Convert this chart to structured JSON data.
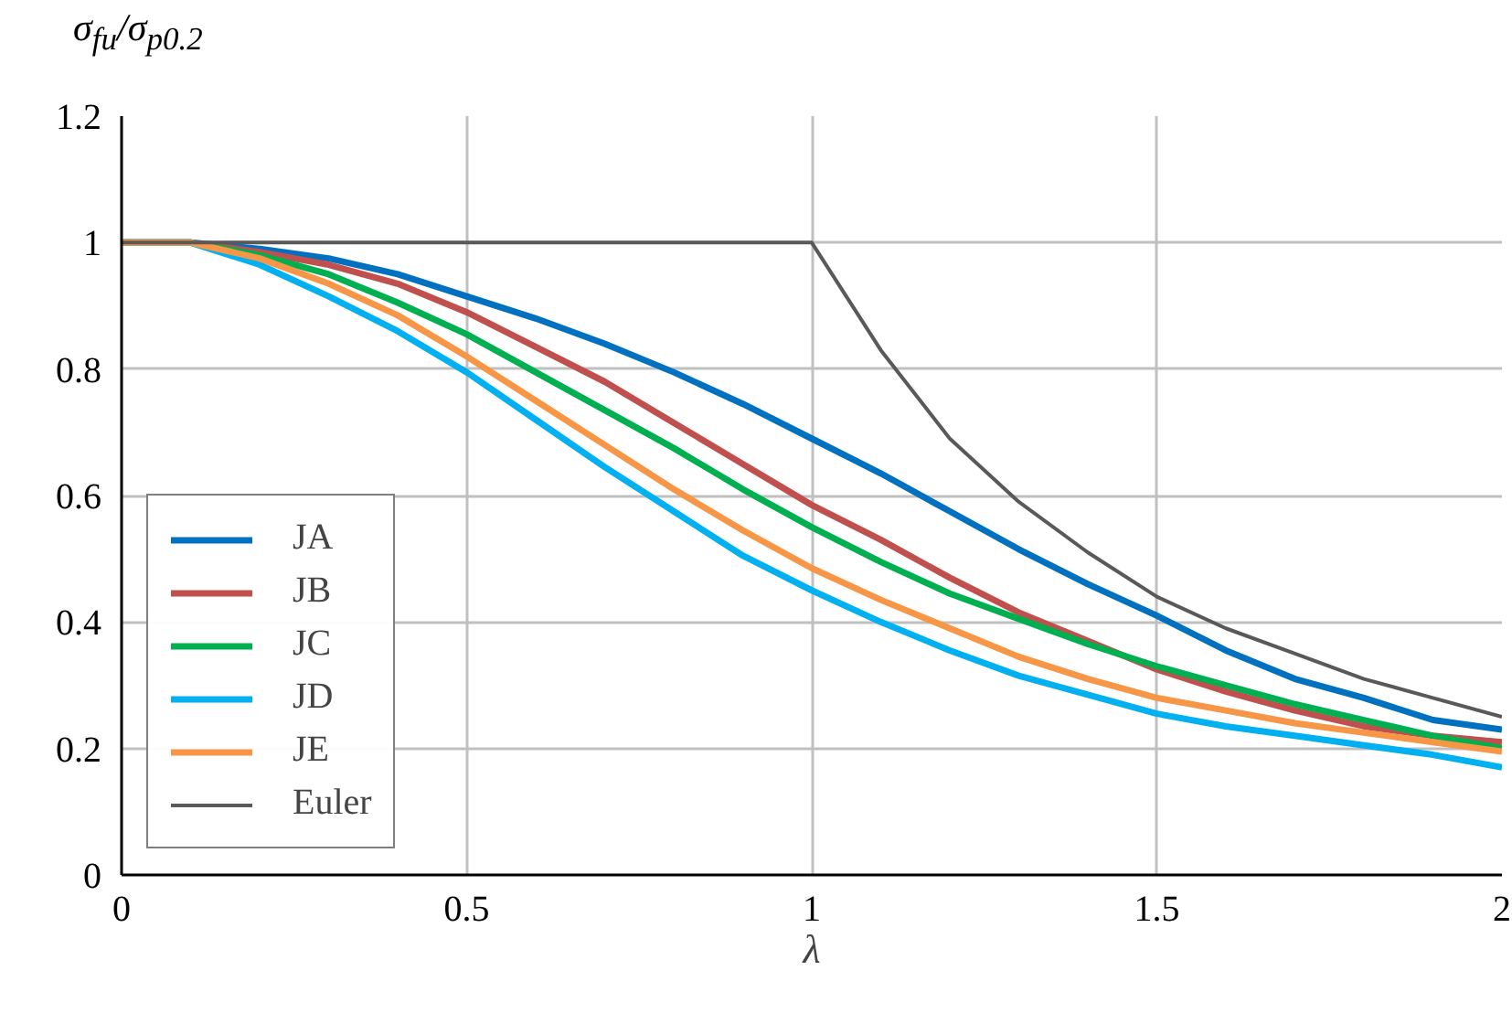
{
  "chart_data": {
    "type": "line",
    "xlabel": "λ",
    "ylabel": "σ$_{fu}$/σ$_{p0.2}$",
    "x": [
      0,
      0.1,
      0.2,
      0.3,
      0.4,
      0.5,
      0.6,
      0.7,
      0.8,
      0.9,
      1.0,
      1.1,
      1.2,
      1.3,
      1.4,
      1.5,
      1.6,
      1.7,
      1.8,
      1.9,
      2.0
    ],
    "series": [
      {
        "name": "JA",
        "color": "#0070c0",
        "values": [
          1,
          1,
          0.99,
          0.975,
          0.95,
          0.915,
          0.88,
          0.84,
          0.795,
          0.745,
          0.69,
          0.635,
          0.575,
          0.515,
          0.46,
          0.41,
          0.355,
          0.31,
          0.28,
          0.245,
          0.23
        ]
      },
      {
        "name": "JB",
        "color": "#c0504d",
        "values": [
          1,
          1,
          0.985,
          0.965,
          0.935,
          0.89,
          0.835,
          0.78,
          0.715,
          0.65,
          0.585,
          0.53,
          0.47,
          0.415,
          0.37,
          0.325,
          0.29,
          0.26,
          0.235,
          0.22,
          0.21
        ]
      },
      {
        "name": "JC",
        "color": "#00b050",
        "values": [
          1,
          1,
          0.98,
          0.95,
          0.905,
          0.855,
          0.795,
          0.735,
          0.675,
          0.61,
          0.55,
          0.495,
          0.445,
          0.405,
          0.365,
          0.33,
          0.3,
          0.27,
          0.245,
          0.22,
          0.2
        ]
      },
      {
        "name": "JD",
        "color": "#00b0f0",
        "values": [
          1,
          1,
          0.965,
          0.915,
          0.86,
          0.795,
          0.72,
          0.645,
          0.575,
          0.505,
          0.45,
          0.4,
          0.355,
          0.315,
          0.285,
          0.255,
          0.235,
          0.22,
          0.205,
          0.19,
          0.17
        ]
      },
      {
        "name": "JE",
        "color": "#f79646",
        "values": [
          1,
          1,
          0.975,
          0.935,
          0.885,
          0.82,
          0.75,
          0.68,
          0.61,
          0.545,
          0.485,
          0.435,
          0.39,
          0.345,
          0.31,
          0.28,
          0.26,
          0.24,
          0.225,
          0.21,
          0.195
        ]
      },
      {
        "name": "Euler",
        "color": "#595959",
        "values": [
          1,
          1,
          1,
          1,
          1,
          1,
          1,
          1,
          1,
          1,
          1,
          0.83,
          0.69,
          0.59,
          0.51,
          0.44,
          0.39,
          0.35,
          0.31,
          0.28,
          0.25
        ]
      }
    ],
    "xlim": [
      0,
      2
    ],
    "ylim": [
      0,
      1.2
    ],
    "xticks": [
      0,
      0.5,
      1,
      1.5,
      2
    ],
    "yticks": [
      0,
      0.2,
      0.4,
      0.6,
      0.8,
      1,
      1.2
    ],
    "grid": true,
    "legend": "bottom left"
  }
}
